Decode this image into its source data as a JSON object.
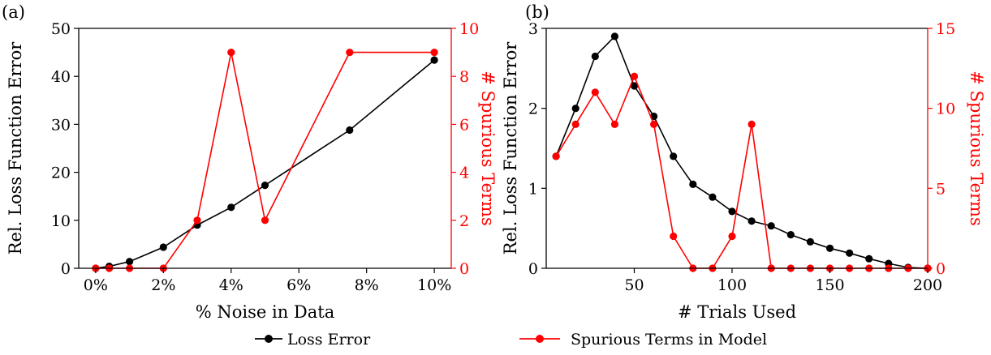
{
  "colors": {
    "loss": "#000000",
    "spurious": "#ff0000"
  },
  "legend": {
    "placement": "bottom-center",
    "entries": [
      {
        "label": "Loss Error",
        "color": "#000000"
      },
      {
        "label": "Spurious Terms in Model",
        "color": "#ff0000"
      }
    ]
  },
  "chart_data": [
    {
      "panel_label": "(a)",
      "type": "line",
      "xlabel": "% Noise in Data",
      "ylabel_left": "Rel. Loss Function Error",
      "ylabel_right": "# Spurious Terms",
      "xlim": [
        -0.5,
        10.5
      ],
      "ylim_left": [
        0,
        50
      ],
      "ylim_right": [
        0,
        10
      ],
      "xticks": [
        0,
        2,
        4,
        6,
        8,
        10
      ],
      "xtick_labels": [
        "0%",
        "2%",
        "4%",
        "6%",
        "8%",
        "10%"
      ],
      "yticks_left": [
        0,
        10,
        20,
        30,
        40,
        50
      ],
      "yticks_right": [
        0,
        2,
        4,
        6,
        8,
        10
      ],
      "grid": false,
      "series": [
        {
          "axis": "left",
          "color": "#000000",
          "x": [
            0,
            0.4,
            1,
            2,
            3,
            4,
            5,
            7.5,
            10
          ],
          "y": [
            0,
            0.4,
            1.4,
            4.4,
            9,
            12.7,
            17.3,
            28.8,
            43.4
          ]
        },
        {
          "axis": "right",
          "color": "#ff0000",
          "x": [
            0,
            0.4,
            1,
            2,
            3,
            4,
            5,
            7.5,
            10
          ],
          "y": [
            0,
            0,
            0,
            0,
            2,
            9,
            2,
            9,
            9
          ]
        }
      ]
    },
    {
      "panel_label": "(b)",
      "type": "line",
      "xlabel": "# Trials Used",
      "ylabel_left": "Rel. Loss Function Error",
      "ylabel_right": "# Spurious Terms",
      "xlim": [
        5,
        200
      ],
      "ylim_left": [
        0,
        3
      ],
      "ylim_right": [
        0,
        15
      ],
      "xticks": [
        50,
        100,
        150,
        200
      ],
      "xtick_labels": [
        "50",
        "100",
        "150",
        "200"
      ],
      "yticks_left": [
        0,
        1,
        2,
        3
      ],
      "yticks_right": [
        0,
        5,
        10,
        15
      ],
      "grid": false,
      "series": [
        {
          "axis": "left",
          "color": "#000000",
          "x": [
            10,
            20,
            30,
            40,
            50,
            60,
            70,
            80,
            90,
            100,
            110,
            120,
            130,
            140,
            150,
            160,
            170,
            180,
            190,
            200
          ],
          "y": [
            1.4,
            2.0,
            2.65,
            2.9,
            2.28,
            1.9,
            1.4,
            1.05,
            0.89,
            0.71,
            0.59,
            0.53,
            0.42,
            0.33,
            0.25,
            0.19,
            0.12,
            0.06,
            0.01,
            0
          ]
        },
        {
          "axis": "right",
          "color": "#ff0000",
          "x": [
            10,
            20,
            30,
            40,
            50,
            60,
            70,
            80,
            90,
            100,
            110,
            120,
            130,
            140,
            150,
            160,
            170,
            180,
            190,
            200
          ],
          "y": [
            7,
            9,
            11,
            9,
            12,
            9,
            2,
            0,
            0,
            2,
            9,
            0,
            0,
            0,
            0,
            0,
            0,
            0,
            0,
            0
          ]
        }
      ]
    }
  ]
}
